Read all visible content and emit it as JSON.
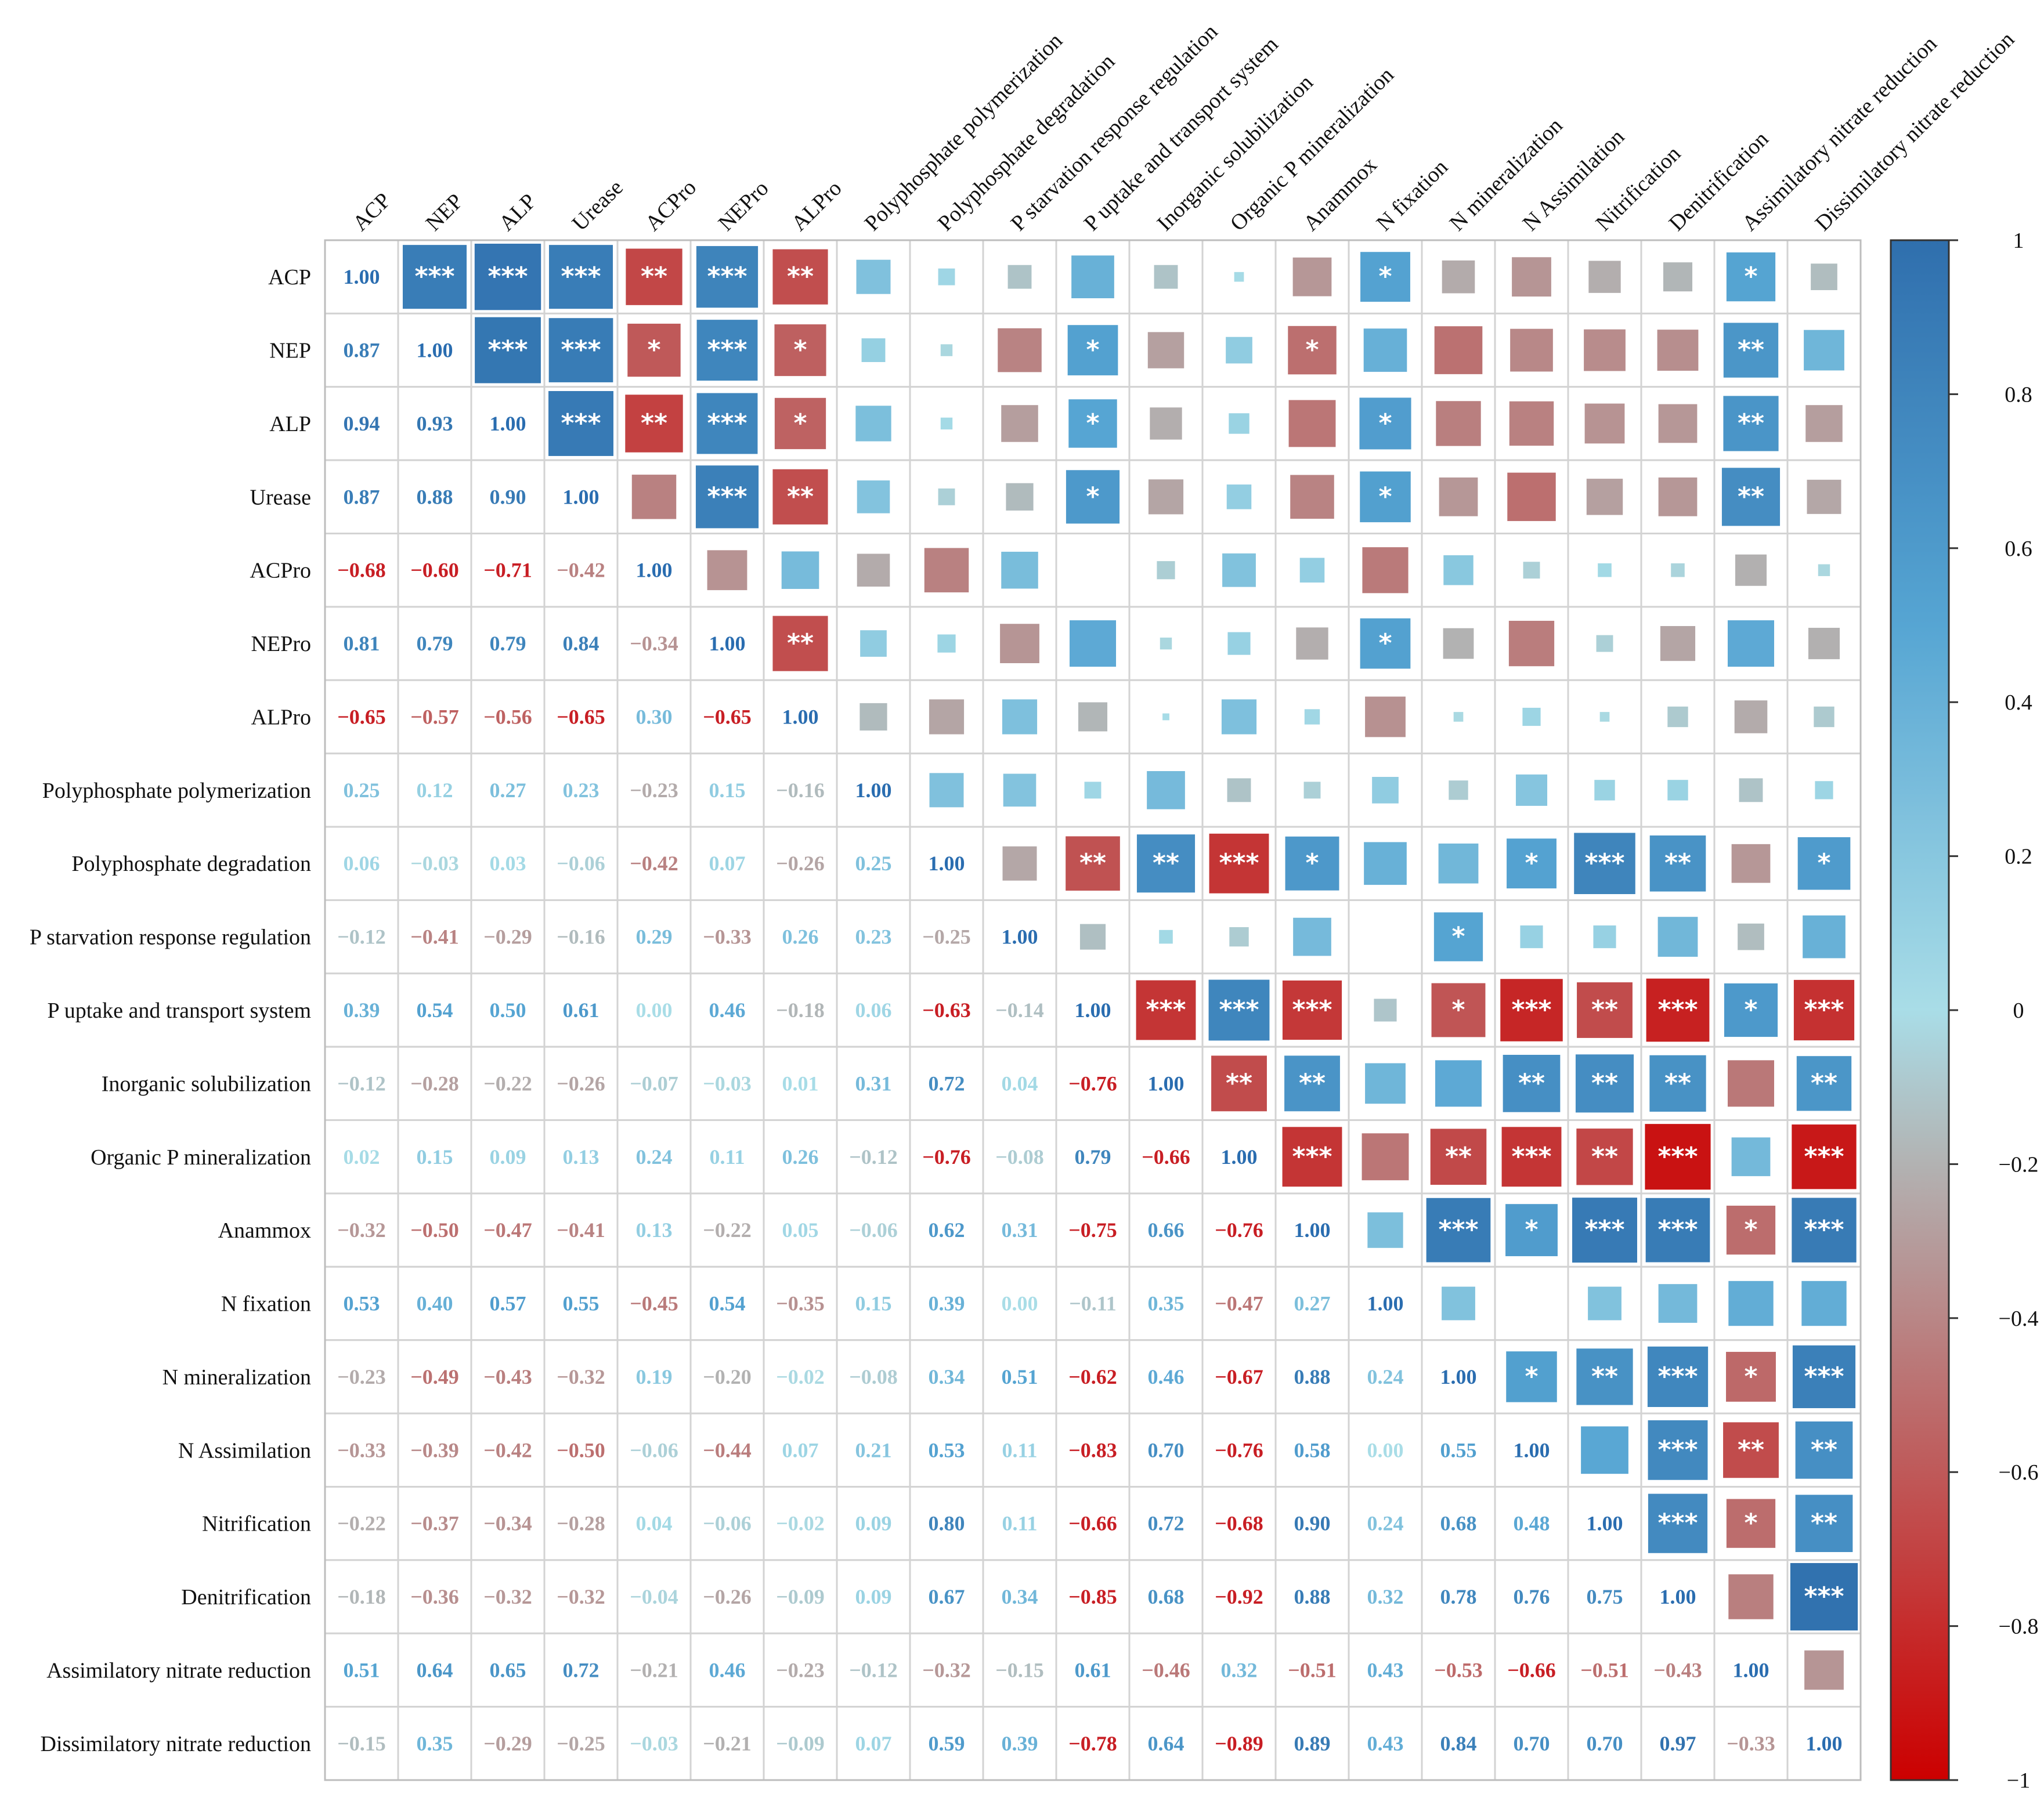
{
  "chart_data": {
    "type": "heatmap",
    "variables": [
      "ACP",
      "NEP",
      "ALP",
      "Urease",
      "ACPro",
      "NEPro",
      "ALPro",
      "Polyphosphate polymerization",
      "Polyphosphate degradation",
      "P starvation response regulation",
      "P uptake and transport system",
      "Inorganic  solubilization",
      "Organic P mineralization",
      "Anammox",
      "N fixation",
      "N mineralization",
      "N Assimilation",
      "Nitrification",
      "Denitrification",
      "Assimilatory nitrate reduction",
      "Dissimilatory nitrate reduction"
    ],
    "lower_values": [
      [],
      [
        "0.87"
      ],
      [
        "0.94",
        "0.93"
      ],
      [
        "0.87",
        "0.88",
        "0.90"
      ],
      [
        "−0.68",
        "−0.60",
        "−0.71",
        "−0.42"
      ],
      [
        "0.81",
        "0.79",
        "0.79",
        "0.84",
        "−0.34"
      ],
      [
        "−0.65",
        "−0.57",
        "−0.56",
        "−0.65",
        "0.30",
        "−0.65"
      ],
      [
        "0.25",
        "0.12",
        "0.27",
        "0.23",
        "−0.23",
        "0.15",
        "−0.16"
      ],
      [
        "0.06",
        "−0.03",
        "0.03",
        "−0.06",
        "−0.42",
        "0.07",
        "−0.26",
        "0.25"
      ],
      [
        "−0.12",
        "−0.41",
        "−0.29",
        "−0.16",
        "0.29",
        "−0.33",
        "0.26",
        "0.23",
        "−0.25"
      ],
      [
        "0.39",
        "0.54",
        "0.50",
        "0.61",
        "0.00",
        "0.46",
        "−0.18",
        "0.06",
        "−0.63",
        "−0.14"
      ],
      [
        "−0.12",
        "−0.28",
        "−0.22",
        "−0.26",
        "−0.07",
        "−0.03",
        "0.01",
        "0.31",
        "0.72",
        "0.04",
        "−0.76"
      ],
      [
        "0.02",
        "0.15",
        "0.09",
        "0.13",
        "0.24",
        "0.11",
        "0.26",
        "−0.12",
        "−0.76",
        "−0.08",
        "0.79",
        "−0.66"
      ],
      [
        "−0.32",
        "−0.50",
        "−0.47",
        "−0.41",
        "0.13",
        "−0.22",
        "0.05",
        "−0.06",
        "0.62",
        "0.31",
        "−0.75",
        "0.66",
        "−0.76"
      ],
      [
        "0.53",
        "0.40",
        "0.57",
        "0.55",
        "−0.45",
        "0.54",
        "−0.35",
        "0.15",
        "0.39",
        "0.00",
        "−0.11",
        "0.35",
        "−0.47",
        "0.27"
      ],
      [
        "−0.23",
        "−0.49",
        "−0.43",
        "−0.32",
        "0.19",
        "−0.20",
        "−0.02",
        "−0.08",
        "0.34",
        "0.51",
        "−0.62",
        "0.46",
        "−0.67",
        "0.88",
        "0.24"
      ],
      [
        "−0.33",
        "−0.39",
        "−0.42",
        "−0.50",
        "−0.06",
        "−0.44",
        "0.07",
        "0.21",
        "0.53",
        "0.11",
        "−0.83",
        "0.70",
        "−0.76",
        "0.58",
        "0.00",
        "0.55"
      ],
      [
        "−0.22",
        "−0.37",
        "−0.34",
        "−0.28",
        "0.04",
        "−0.06",
        "−0.02",
        "0.09",
        "0.80",
        "0.11",
        "−0.66",
        "0.72",
        "−0.68",
        "0.90",
        "0.24",
        "0.68",
        "0.48"
      ],
      [
        "−0.18",
        "−0.36",
        "−0.32",
        "−0.32",
        "−0.04",
        "−0.26",
        "−0.09",
        "0.09",
        "0.67",
        "0.34",
        "−0.85",
        "0.68",
        "−0.92",
        "0.88",
        "0.32",
        "0.78",
        "0.76",
        "0.75"
      ],
      [
        "0.51",
        "0.64",
        "0.65",
        "0.72",
        "−0.21",
        "0.46",
        "−0.23",
        "−0.12",
        "−0.32",
        "−0.15",
        "0.61",
        "−0.46",
        "0.32",
        "−0.51",
        "0.43",
        "−0.53",
        "−0.66",
        "−0.51",
        "−0.43"
      ],
      [
        "−0.15",
        "0.35",
        "−0.29",
        "−0.25",
        "−0.03",
        "−0.21",
        "−0.09",
        "0.07",
        "0.59",
        "0.39",
        "−0.78",
        "0.64",
        "−0.89",
        "0.89",
        "0.43",
        "0.84",
        "0.70",
        "0.70",
        "0.97",
        "−0.33"
      ]
    ],
    "diagonal_label": "1.00",
    "significance": {
      "0": {
        "1": "***",
        "2": "***",
        "3": "***",
        "4": "**",
        "5": "***",
        "6": "**",
        "14": "*",
        "19": "*"
      },
      "1": {
        "2": "***",
        "3": "***",
        "4": "*",
        "5": "***",
        "6": "*",
        "10": "*",
        "13": "*",
        "19": "**"
      },
      "2": {
        "3": "***",
        "4": "**",
        "5": "***",
        "6": "*",
        "10": "*",
        "14": "*",
        "19": "**"
      },
      "3": {
        "5": "***",
        "6": "**",
        "10": "*",
        "14": "*",
        "19": "**"
      },
      "5": {
        "6": "**",
        "14": "*"
      },
      "8": {
        "10": "**",
        "11": "**",
        "12": "***",
        "13": "*",
        "16": "*",
        "17": "***",
        "18": "**",
        "20": "*"
      },
      "9": {
        "15": "*"
      },
      "10": {
        "11": "***",
        "12": "***",
        "13": "***",
        "15": "*",
        "16": "***",
        "17": "**",
        "18": "***",
        "19": "*",
        "20": "***"
      },
      "11": {
        "12": "**",
        "13": "**",
        "16": "**",
        "17": "**",
        "18": "**",
        "20": "**"
      },
      "12": {
        "13": "***",
        "15": "**",
        "16": "***",
        "17": "**",
        "18": "***",
        "20": "***"
      },
      "13": {
        "15": "***",
        "16": "*",
        "17": "***",
        "18": "***",
        "19": "*",
        "20": "***"
      },
      "15": {
        "16": "*",
        "17": "**",
        "18": "***",
        "19": "*",
        "20": "***"
      },
      "16": {
        "18": "***",
        "19": "**",
        "20": "**"
      },
      "17": {
        "18": "***",
        "19": "*",
        "20": "**"
      },
      "18": {
        "20": "***"
      }
    },
    "colorbar": {
      "range": [
        -1,
        1
      ],
      "tick_labels": [
        "1",
        "0.8",
        "0.6",
        "0.4",
        "0.2",
        "0",
        "−0.2",
        "−0.4",
        "−0.6",
        "−0.8",
        "−1"
      ],
      "colors": {
        "negative_end": "#cc0000",
        "mid_low": "#b2b2b2",
        "mid": "#a9dde7",
        "mid_high": "#56a5d3",
        "positive_end": "#2f6fad"
      }
    },
    "grid": true
  }
}
